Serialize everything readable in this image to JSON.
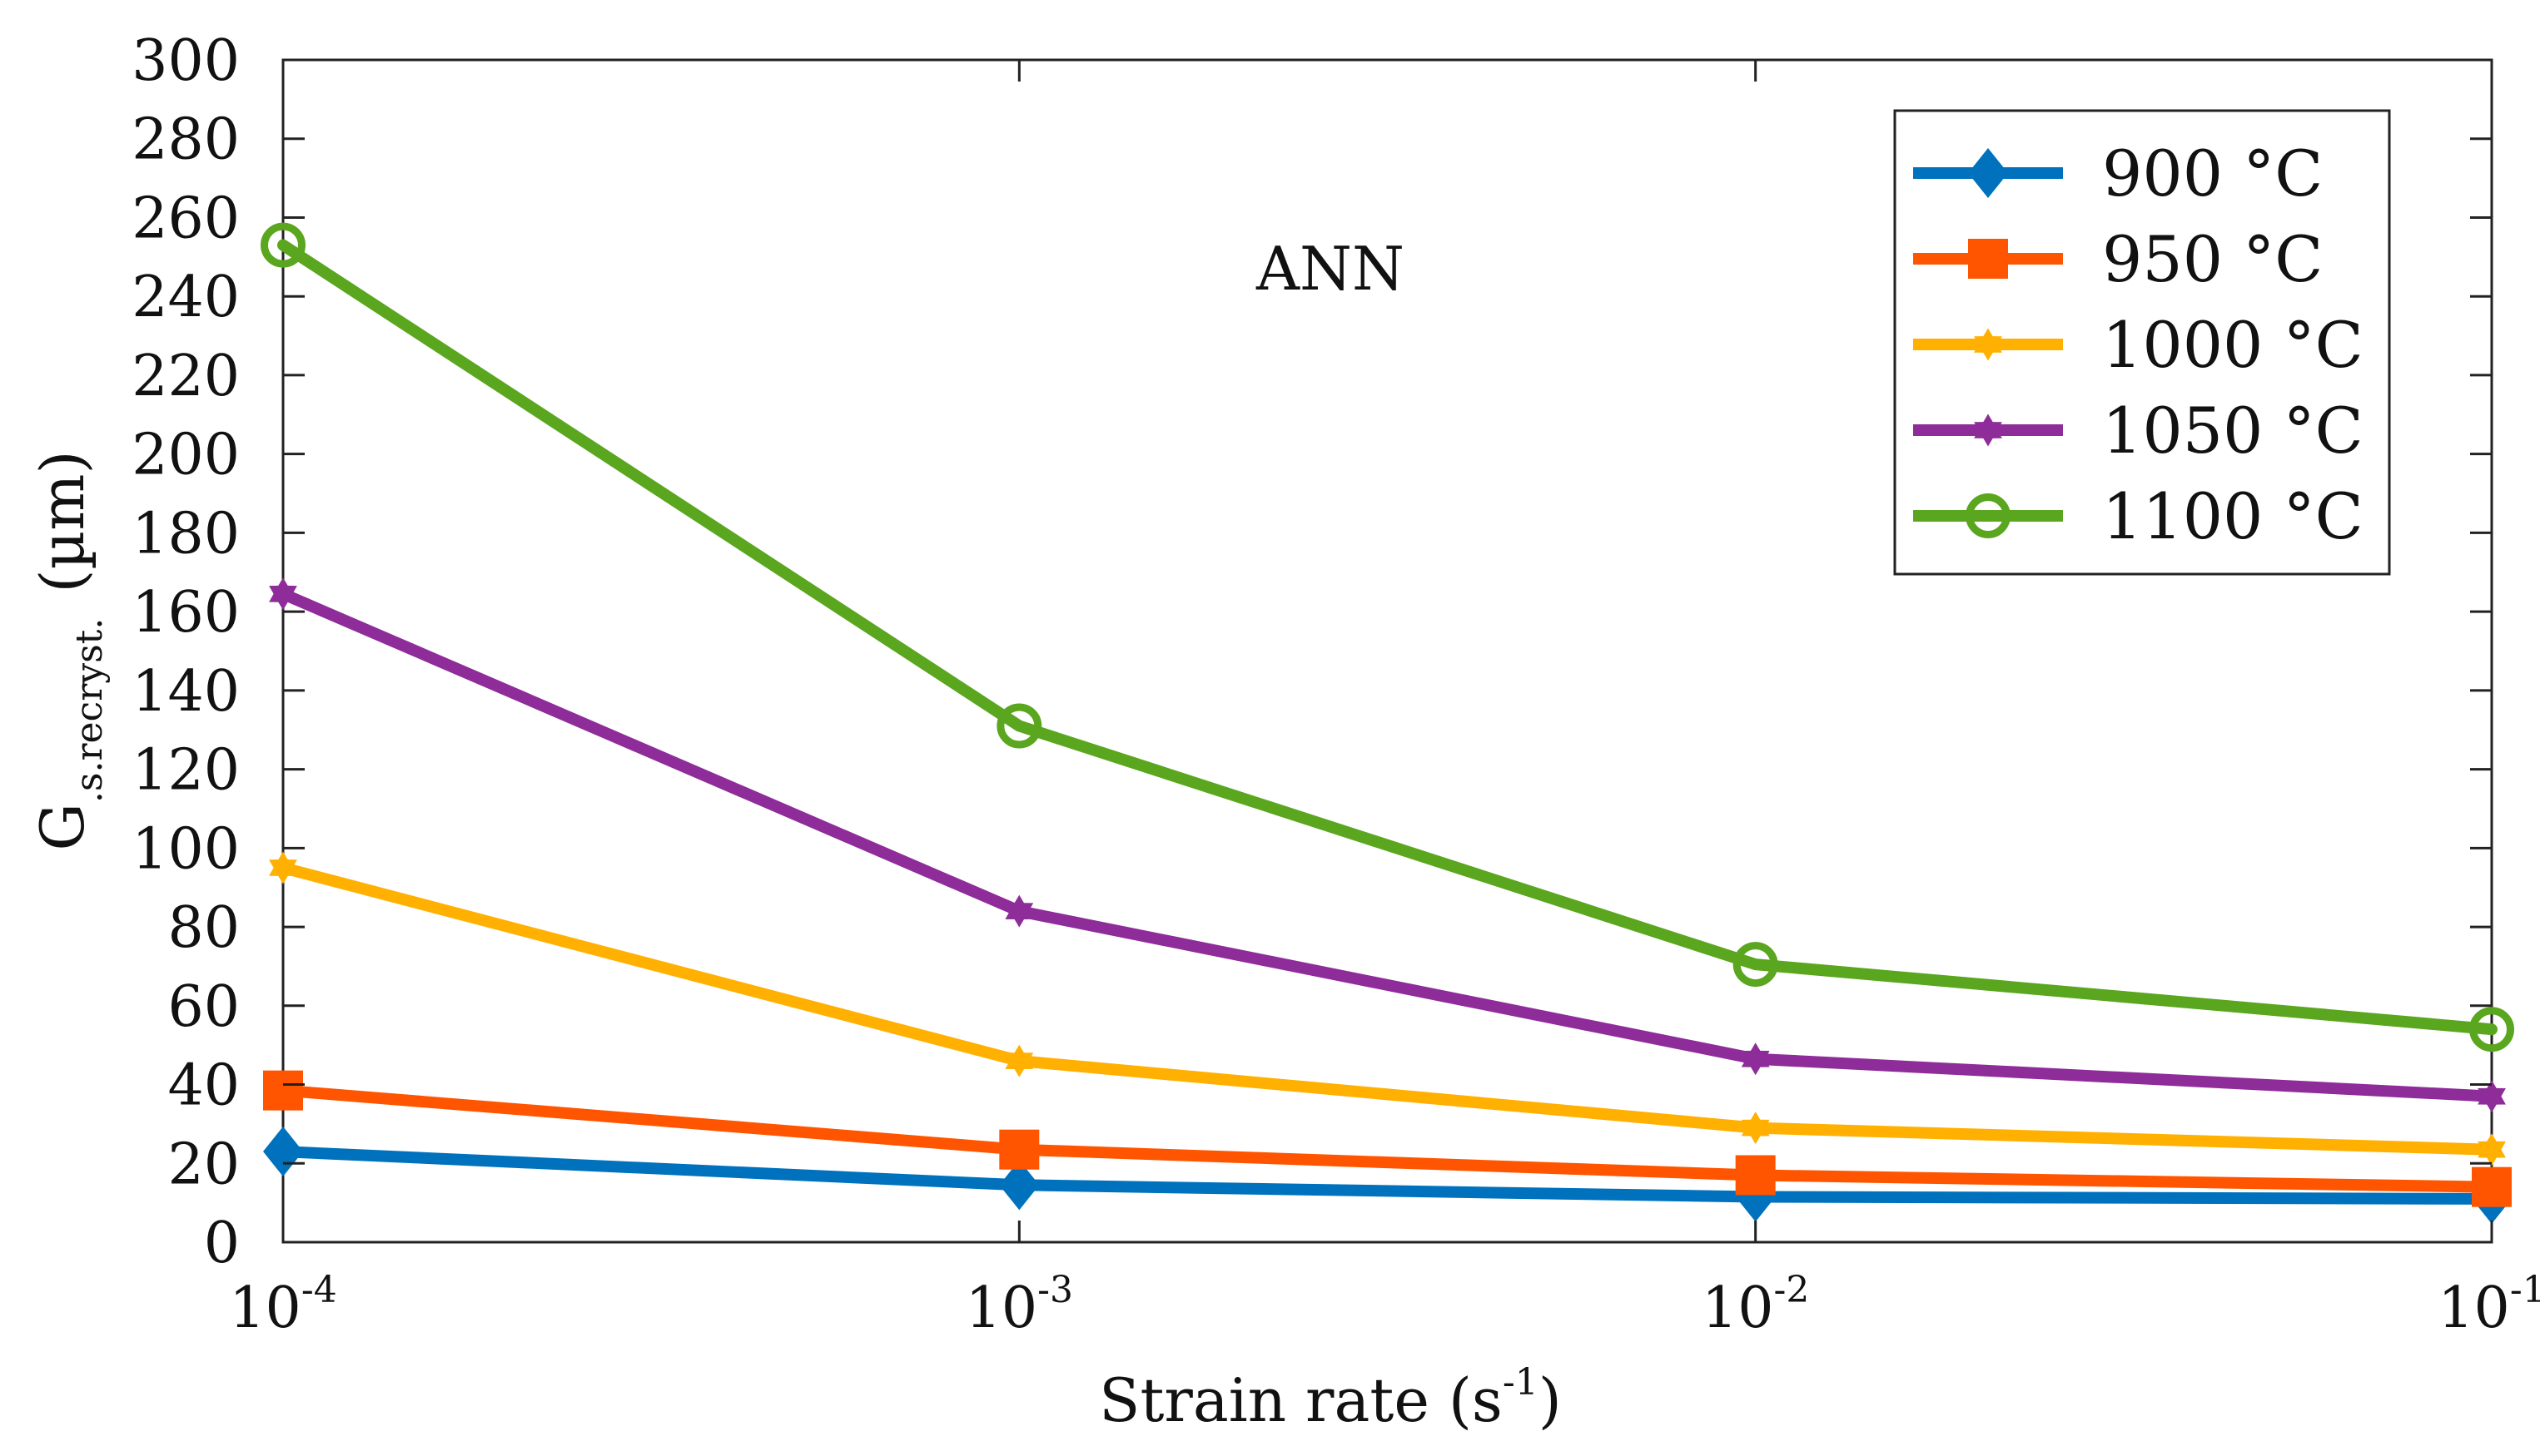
{
  "chart_data": {
    "type": "line",
    "title": "",
    "annotation": "ANN",
    "x": [
      0.0001,
      0.001,
      0.01,
      0.1
    ],
    "x_scale": "log",
    "xticks": [
      {
        "base": "10",
        "exp": "-4"
      },
      {
        "base": "10",
        "exp": "-3"
      },
      {
        "base": "10",
        "exp": "-2"
      },
      {
        "base": "10",
        "exp": "-1"
      }
    ],
    "xlabel": {
      "text": "Strain rate (s",
      "sup": "-1",
      "close": ")"
    },
    "ylabel": {
      "main": "G",
      "sub": ".s.recryst.",
      "unit": "(µm)"
    },
    "ylim": [
      0,
      300
    ],
    "yticks": [
      "0",
      "20",
      "40",
      "60",
      "80",
      "100",
      "120",
      "140",
      "160",
      "180",
      "200",
      "220",
      "240",
      "260",
      "280",
      "300"
    ],
    "grid": false,
    "legend_position": "top-right",
    "series": [
      {
        "name": "900 °C",
        "color": "#0072BD",
        "marker": "diamond",
        "values": [
          23,
          14.5,
          11.5,
          11
        ]
      },
      {
        "name": "950 °C",
        "color": "#FF5500",
        "marker": "square",
        "values": [
          38.5,
          23.5,
          17,
          14
        ]
      },
      {
        "name": "1000 °C",
        "color": "#FFB000",
        "marker": "star",
        "values": [
          95,
          46,
          29,
          23.5
        ]
      },
      {
        "name": "1050 °C",
        "color": "#8E2C99",
        "marker": "star",
        "values": [
          164.5,
          84,
          46.5,
          37
        ]
      },
      {
        "name": "1100 °C",
        "color": "#5AA61E",
        "marker": "circle",
        "values": [
          253,
          131,
          70.5,
          54
        ]
      }
    ]
  }
}
